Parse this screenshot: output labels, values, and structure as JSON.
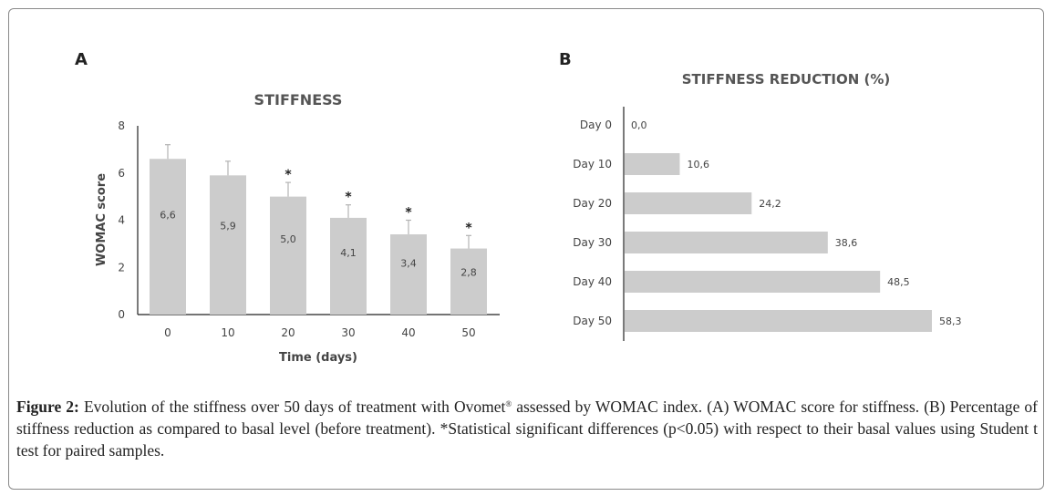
{
  "panel_a_label": "A",
  "panel_b_label": "B",
  "colors": {
    "bar": "#cccccc",
    "axis": "#222222",
    "text": "#444444",
    "frame": "#8a8a8a"
  },
  "chart_data": [
    {
      "type": "bar",
      "title": "STIFFNESS",
      "xlabel": "Time (days)",
      "ylabel": "WOMAC score",
      "ylim": [
        0,
        8
      ],
      "yticks": [
        "0",
        "2",
        "4",
        "6",
        "8"
      ],
      "categories": [
        "0",
        "10",
        "20",
        "30",
        "40",
        "50"
      ],
      "values": [
        6.6,
        5.9,
        5.0,
        4.1,
        3.4,
        2.8
      ],
      "value_labels": [
        "6,6",
        "5,9",
        "5,0",
        "4,1",
        "3,4",
        "2,8"
      ],
      "error_upper": [
        7.2,
        6.5,
        5.6,
        4.65,
        4.0,
        3.35
      ],
      "significance_marks": [
        "",
        "",
        "*",
        "*",
        "*",
        "*"
      ]
    },
    {
      "type": "bar",
      "orientation": "horizontal",
      "title": "STIFFNESS REDUCTION (%)",
      "categories": [
        "Day 0",
        "Day 10",
        "Day 20",
        "Day 30",
        "Day 40",
        "Day 50"
      ],
      "values": [
        0.0,
        10.6,
        24.2,
        38.6,
        48.5,
        58.3
      ],
      "value_labels": [
        "0,0",
        "10,6",
        "24,2",
        "38,6",
        "48,5",
        "58,3"
      ],
      "xlim": [
        0,
        60
      ]
    }
  ],
  "caption": {
    "label": "Figure 2:",
    "text_before_sup": " Evolution of the stiffness over 50 days of treatment with Ovomet",
    "sup": "®",
    "text_after_sup": " assessed by WOMAC index. (A) WOMAC score for stiffness. (B) Percentage of stiffness reduction as compared to basal level (before treatment). *Statistical significant differences (p<0.05) with respect to their basal values using Student t test for paired samples."
  }
}
